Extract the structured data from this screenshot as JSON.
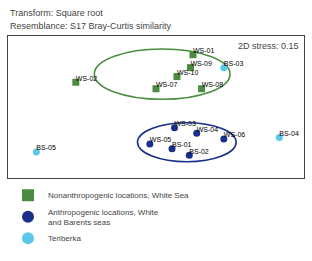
{
  "chart_data": {
    "type": "scatter",
    "annotations": [
      "Transform: Square root",
      "Resemblance: S17 Bray-Curtis similarity",
      "2D stress: 0.15"
    ],
    "series": [
      {
        "name": "Nonanthropogenic locations, White Sea",
        "color": "#4a8c40",
        "marker": "square",
        "labels": [
          "WS-01",
          "WS-02",
          "WS-07",
          "WS-08",
          "WS-09",
          "WS-10"
        ],
        "x": [
          0.35,
          -0.6,
          0.05,
          0.42,
          0.33,
          0.22
        ],
        "values": [
          0.72,
          0.38,
          0.3,
          0.3,
          0.56,
          0.45
        ]
      },
      {
        "name": "Anthropogenic locations, White\nand Barents seas",
        "color": "#1a2f8a",
        "marker": "circle",
        "labels": [
          "WS-03",
          "WS-04",
          "WS-05",
          "WS-06",
          "BS-01",
          "BS-02"
        ],
        "x": [
          0.2,
          0.38,
          0.0,
          0.6,
          0.18,
          0.32
        ],
        "values": [
          -0.18,
          -0.25,
          -0.38,
          -0.32,
          -0.44,
          -0.52
        ]
      },
      {
        "name": "Teriberka",
        "color": "#5bc8e8",
        "marker": "circle",
        "labels": [
          "BS-03",
          "BS-04",
          "BS-05"
        ],
        "x": [
          0.6,
          1.05,
          -0.92
        ],
        "values": [
          0.56,
          -0.3,
          -0.48
        ]
      }
    ],
    "ellipses": [
      {
        "cx": 0.1,
        "cy": 0.48,
        "width": 1.1,
        "height": 0.62,
        "color": "#4a8c40"
      },
      {
        "cx": 0.3,
        "cy": -0.36,
        "width": 0.8,
        "height": 0.48,
        "color": "#1a2f8a"
      }
    ],
    "xlim": [
      -1.15,
      1.25
    ],
    "ylim": [
      -0.8,
      0.95
    ],
    "tick_labels": false,
    "grid": false,
    "legend": "bottom"
  }
}
